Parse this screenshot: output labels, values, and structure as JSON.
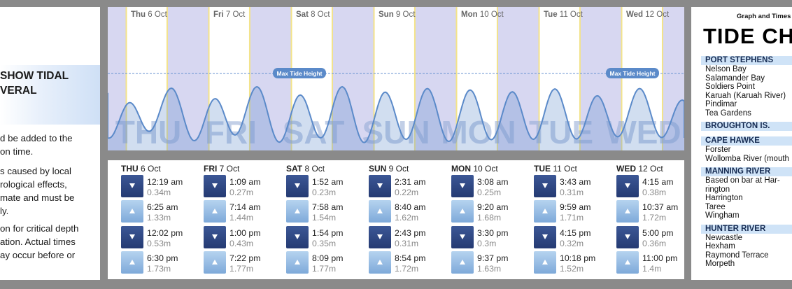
{
  "intro": {
    "heading_line1": "SHOW TIDAL",
    "heading_line2": "VERAL",
    "para1": [
      "d be added to the",
      "on time."
    ],
    "para2": [
      "s caused by local",
      "rological  effects,",
      "mate and must be",
      "ly."
    ],
    "para3": [
      "on for critical depth",
      "ation. Actual times",
      "ay occur before or"
    ]
  },
  "graph": {
    "max_label": "Max Tide Height",
    "day_headers": [
      {
        "dow": "Thu",
        "date": "6 Oct"
      },
      {
        "dow": "Fri",
        "date": "7 Oct"
      },
      {
        "dow": "Sat",
        "date": "8 Oct"
      },
      {
        "dow": "Sun",
        "date": "9 Oct"
      },
      {
        "dow": "Mon",
        "date": "10 Oct"
      },
      {
        "dow": "Tue",
        "date": "11 Oct"
      },
      {
        "dow": "Wed",
        "date": "12 Oct"
      }
    ],
    "watermarks": [
      "THU",
      "FRI",
      "SAT",
      "SUN",
      "MON",
      "TUE",
      "WED"
    ]
  },
  "days": [
    {
      "dow": "THU",
      "date": "6 Oct",
      "tides": [
        {
          "type": "low",
          "time": "12:19 am",
          "height": "0.34m"
        },
        {
          "type": "high",
          "time": "6:25 am",
          "height": "1.33m"
        },
        {
          "type": "low",
          "time": "12:02 pm",
          "height": "0.53m"
        },
        {
          "type": "high",
          "time": "6:30 pm",
          "height": "1.73m"
        }
      ]
    },
    {
      "dow": "FRI",
      "date": "7 Oct",
      "tides": [
        {
          "type": "low",
          "time": "1:09 am",
          "height": "0.27m"
        },
        {
          "type": "high",
          "time": "7:14 am",
          "height": "1.44m"
        },
        {
          "type": "low",
          "time": "1:00 pm",
          "height": "0.43m"
        },
        {
          "type": "high",
          "time": "7:22 pm",
          "height": "1.77m"
        }
      ]
    },
    {
      "dow": "SAT",
      "date": "8 Oct",
      "tides": [
        {
          "type": "low",
          "time": "1:52 am",
          "height": "0.23m"
        },
        {
          "type": "high",
          "time": "7:58 am",
          "height": "1.54m"
        },
        {
          "type": "low",
          "time": "1:54 pm",
          "height": "0.35m"
        },
        {
          "type": "high",
          "time": "8:09 pm",
          "height": "1.77m"
        }
      ]
    },
    {
      "dow": "SUN",
      "date": "9 Oct",
      "tides": [
        {
          "type": "low",
          "time": "2:31 am",
          "height": "0.22m"
        },
        {
          "type": "high",
          "time": "8:40 am",
          "height": "1.62m"
        },
        {
          "type": "low",
          "time": "2:43 pm",
          "height": "0.31m"
        },
        {
          "type": "high",
          "time": "8:54 pm",
          "height": "1.72m"
        }
      ]
    },
    {
      "dow": "MON",
      "date": "10 Oct",
      "tides": [
        {
          "type": "low",
          "time": "3:08 am",
          "height": "0.25m"
        },
        {
          "type": "high",
          "time": "9:20 am",
          "height": "1.68m"
        },
        {
          "type": "low",
          "time": "3:30 pm",
          "height": "0.3m"
        },
        {
          "type": "high",
          "time": "9:37 pm",
          "height": "1.63m"
        }
      ]
    },
    {
      "dow": "TUE",
      "date": "11 Oct",
      "tides": [
        {
          "type": "low",
          "time": "3:43 am",
          "height": "0.31m"
        },
        {
          "type": "high",
          "time": "9:59 am",
          "height": "1.71m"
        },
        {
          "type": "low",
          "time": "4:15 pm",
          "height": "0.32m"
        },
        {
          "type": "high",
          "time": "10:18 pm",
          "height": "1.52m"
        }
      ]
    },
    {
      "dow": "WED",
      "date": "12 Oct",
      "tides": [
        {
          "type": "low",
          "time": "4:15 am",
          "height": "0.38m"
        },
        {
          "type": "high",
          "time": "10:37 am",
          "height": "1.72m"
        },
        {
          "type": "low",
          "time": "5:00 pm",
          "height": "0.36m"
        },
        {
          "type": "high",
          "time": "11:00 pm",
          "height": "1.4m"
        }
      ]
    }
  ],
  "right": {
    "subtitle": "Graph and Times",
    "title": "TIDE CH",
    "regions": [
      {
        "name": "PORT STEPHENS",
        "locations": [
          "Nelson Bay",
          "Salamander Bay",
          "Soldiers Point",
          "Karuah (Karuah River)",
          "Pindimar",
          "Tea Gardens"
        ]
      },
      {
        "name": "BROUGHTON IS.",
        "locations": []
      },
      {
        "name": "CAPE HAWKE",
        "locations": [
          "Forster",
          "Wollomba River (mouth"
        ]
      },
      {
        "name": "MANNING RIVER",
        "locations": [
          "Based on bar at Har-",
          "rington",
          "Harrington",
          "Taree",
          "Wingham"
        ]
      },
      {
        "name": "HUNTER RIVER",
        "locations": [
          "Newcastle",
          "Hexham",
          "Raymond Terrace",
          "Morpeth"
        ]
      }
    ]
  },
  "colors": {
    "low_button": "#2d4681",
    "high_button": "#9dc1e6",
    "wave": "#5b8ac9",
    "day_band": "#ffffff",
    "night_band": "#d7d7f1",
    "sunrise_line": "#f3e38a"
  }
}
